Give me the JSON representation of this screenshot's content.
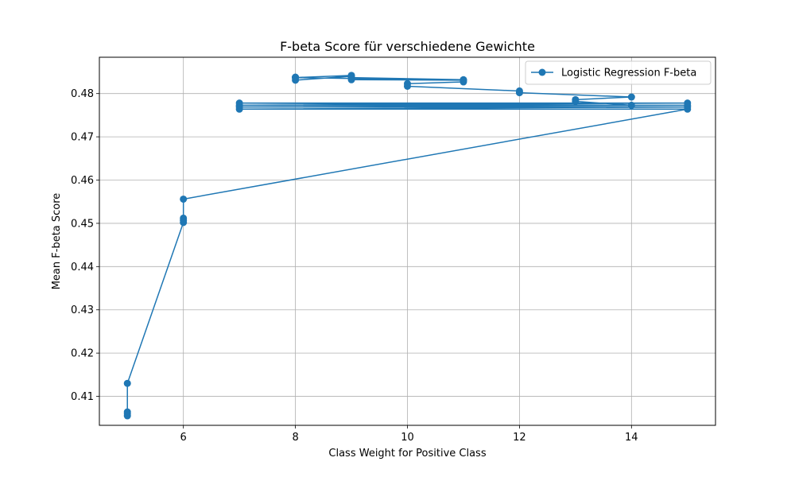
{
  "chart_data": {
    "type": "line",
    "title": "F-beta Score für verschiedene Gewichte",
    "xlabel": "Class Weight for Positive Class",
    "ylabel": "Mean F-beta Score",
    "xlim": [
      4.5,
      15.5
    ],
    "ylim": [
      0.4033,
      0.4884
    ],
    "x_ticks": [
      6,
      8,
      10,
      12,
      14
    ],
    "x_tick_labels": [
      "6",
      "8",
      "10",
      "12",
      "14"
    ],
    "y_ticks": [
      0.41,
      0.42,
      0.43,
      0.44,
      0.45,
      0.46,
      0.47,
      0.48
    ],
    "y_tick_labels": [
      "0.41",
      "0.42",
      "0.43",
      "0.44",
      "0.45",
      "0.46",
      "0.47",
      "0.48"
    ],
    "grid": true,
    "legend_position": "top-right",
    "series": [
      {
        "name": "Logistic Regression F-beta",
        "color": "#1f77b4",
        "marker": "circle",
        "x": [
          5,
          5,
          5,
          5,
          6,
          6,
          6,
          6,
          15,
          7,
          15,
          7,
          15,
          7,
          15,
          7,
          14,
          13,
          13,
          14,
          12,
          12,
          10,
          10,
          11,
          11,
          9,
          9,
          9,
          8,
          8,
          11,
          11,
          9,
          9,
          8,
          8
        ],
        "y": [
          0.4055,
          0.406,
          0.4064,
          0.413,
          0.4502,
          0.4507,
          0.4512,
          0.4556,
          0.4764,
          0.4764,
          0.4769,
          0.4769,
          0.4773,
          0.4773,
          0.4778,
          0.4778,
          0.4773,
          0.4782,
          0.4786,
          0.4792,
          0.4802,
          0.4806,
          0.4817,
          0.4823,
          0.4827,
          0.4831,
          0.4832,
          0.4837,
          0.484,
          0.4831,
          0.4837,
          0.4831,
          0.4832,
          0.4837,
          0.4842,
          0.4837,
          0.4838
        ]
      }
    ]
  }
}
